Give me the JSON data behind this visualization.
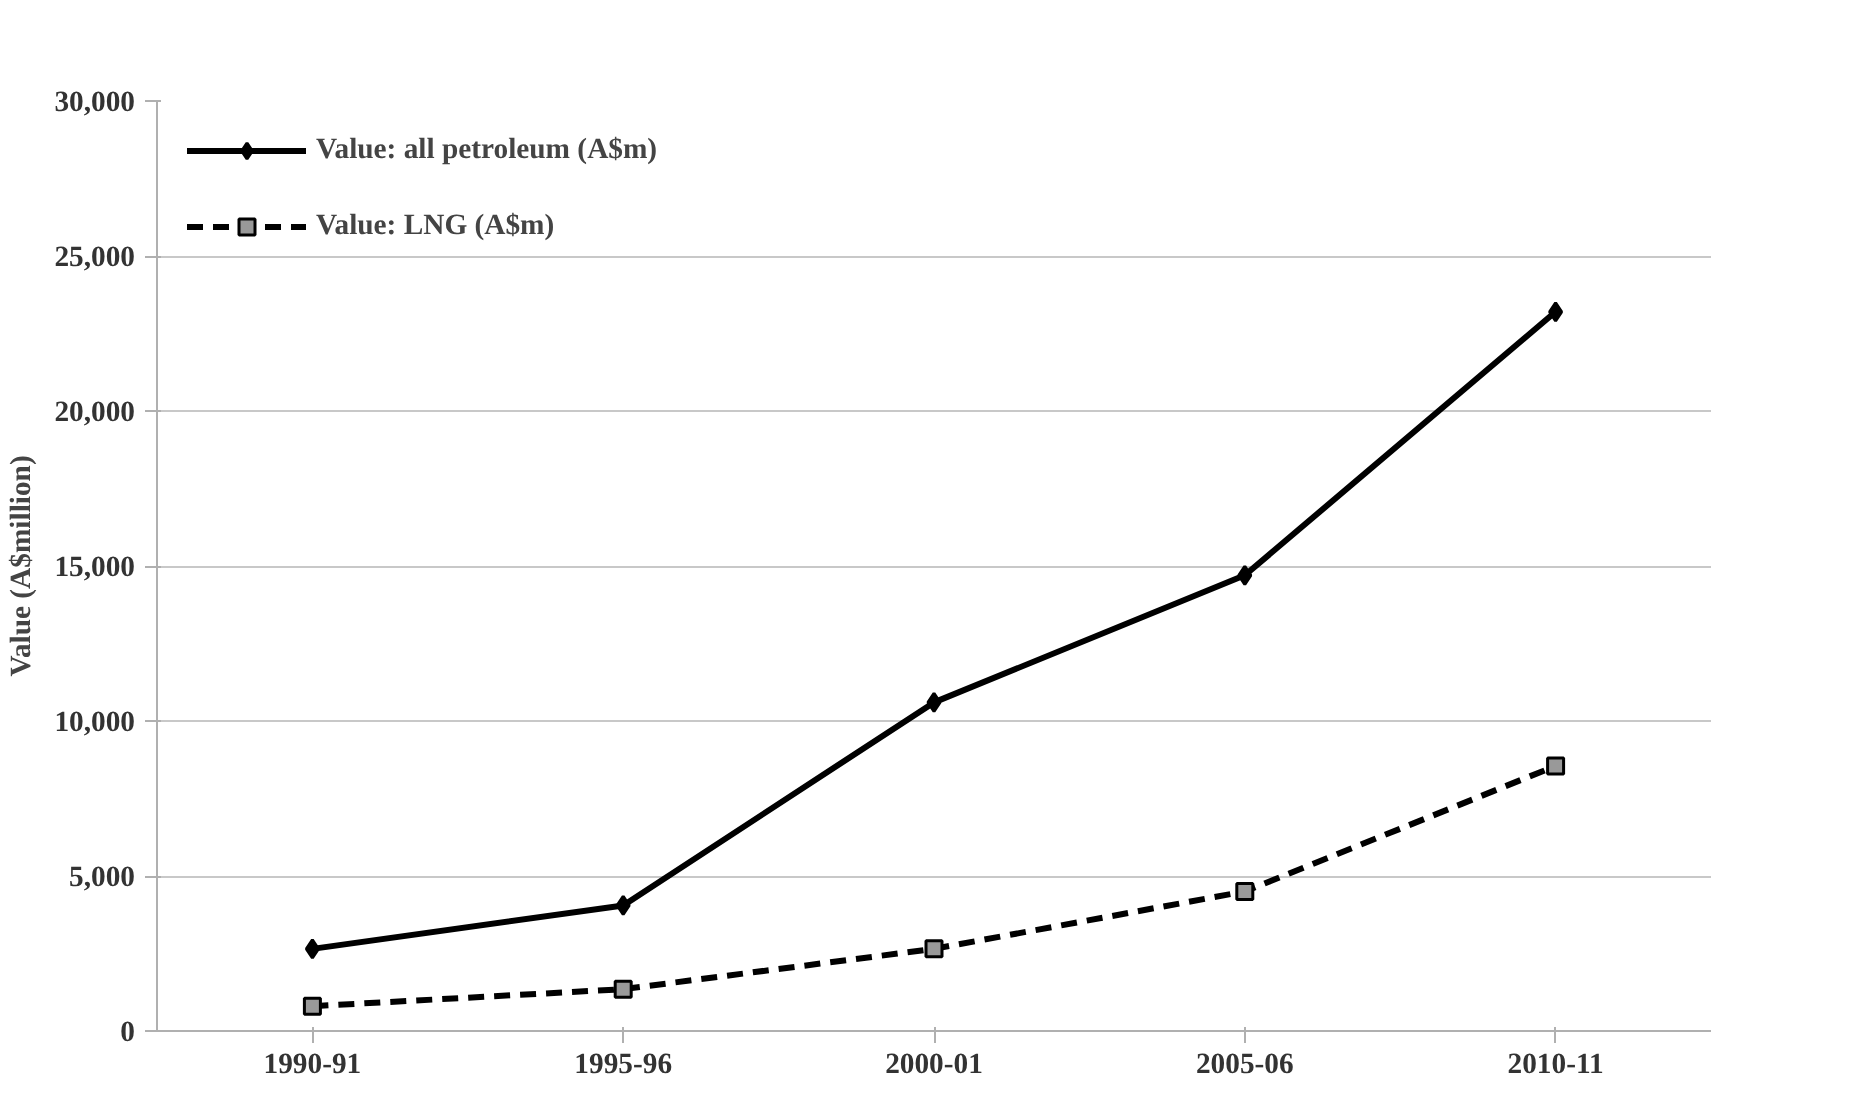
{
  "chart_data": {
    "type": "line",
    "ylabel": "Value (A$million)",
    "categories": [
      "1990-91",
      "1995-96",
      "2000-01",
      "2005-06",
      "2010-11"
    ],
    "series": [
      {
        "name": "Value: all petroleum (A$m)",
        "color": "#000000",
        "marker": "diamond",
        "line_style": "solid",
        "values": [
          2650,
          4050,
          10600,
          14700,
          23200
        ]
      },
      {
        "name": "Value: LNG (A$m)",
        "color": "#000000",
        "marker": "square",
        "line_style": "dashed",
        "values": [
          800,
          1350,
          2650,
          4500,
          8550
        ]
      }
    ],
    "ylim": [
      0,
      30000
    ],
    "yticks": [
      {
        "value": 0,
        "label": "0"
      },
      {
        "value": 5000,
        "label": "5,000"
      },
      {
        "value": 10000,
        "label": "10,000"
      },
      {
        "value": 15000,
        "label": "15,000"
      },
      {
        "value": 20000,
        "label": "20,000"
      },
      {
        "value": 25000,
        "label": "25,000"
      },
      {
        "value": 30000,
        "label": "30,000"
      }
    ],
    "grid": "y",
    "legend": "top left"
  }
}
